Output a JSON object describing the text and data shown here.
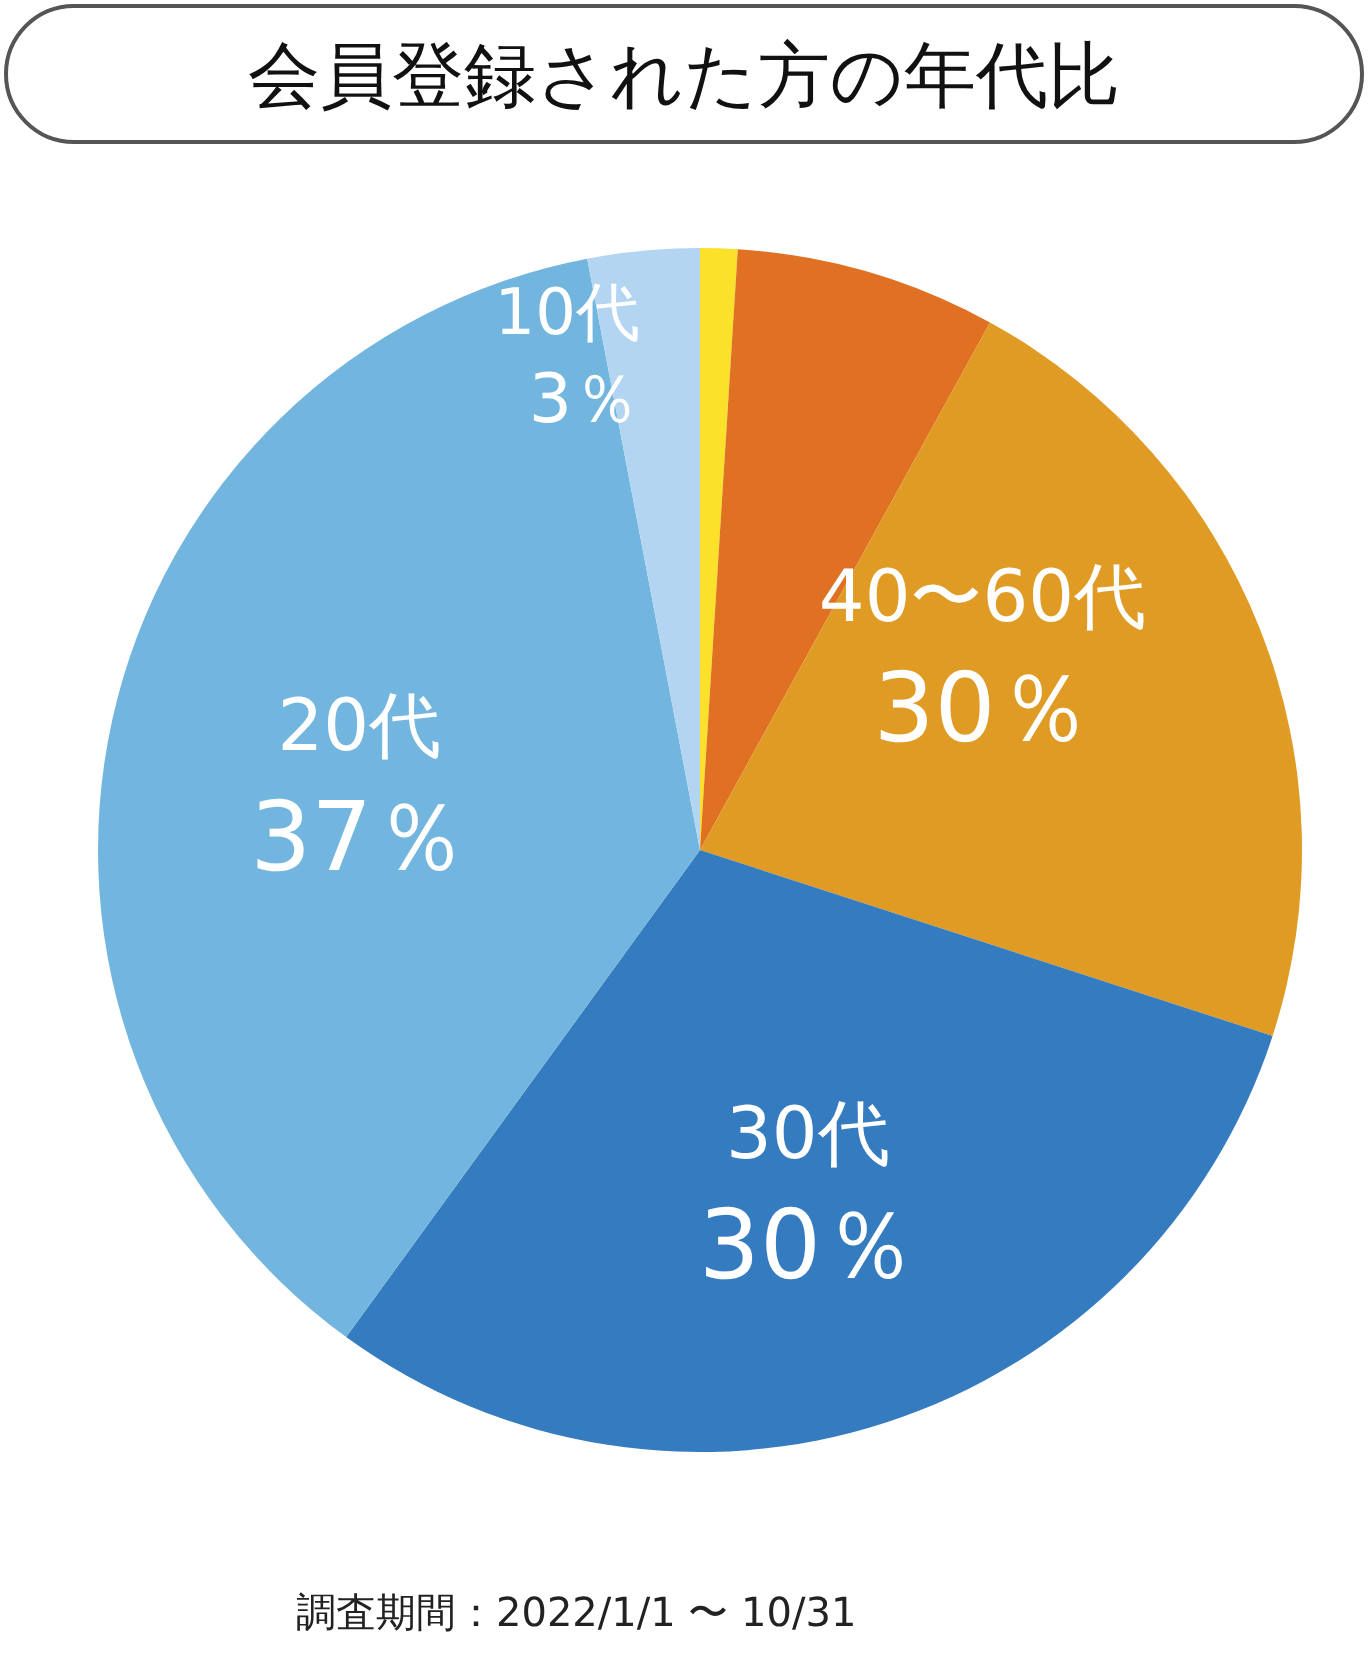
{
  "chart_data": {
    "type": "pie",
    "title": "会員登録された方の年代比",
    "categories": [
      null,
      null,
      null,
      "30代",
      "20代",
      "10代"
    ],
    "values": [
      1,
      7,
      22,
      30,
      37,
      3
    ],
    "colors": [
      "#fbe12a",
      "#e07022",
      "#df9b24",
      "#357bbf",
      "#72b6e0",
      "#b3d5f1"
    ],
    "value_labels": [
      null,
      null,
      null,
      "30％",
      "37％",
      "3％"
    ],
    "annotations": [
      "40〜60代",
      "30％",
      "調査期間：2022/1/1 〜 10/31"
    ]
  }
}
